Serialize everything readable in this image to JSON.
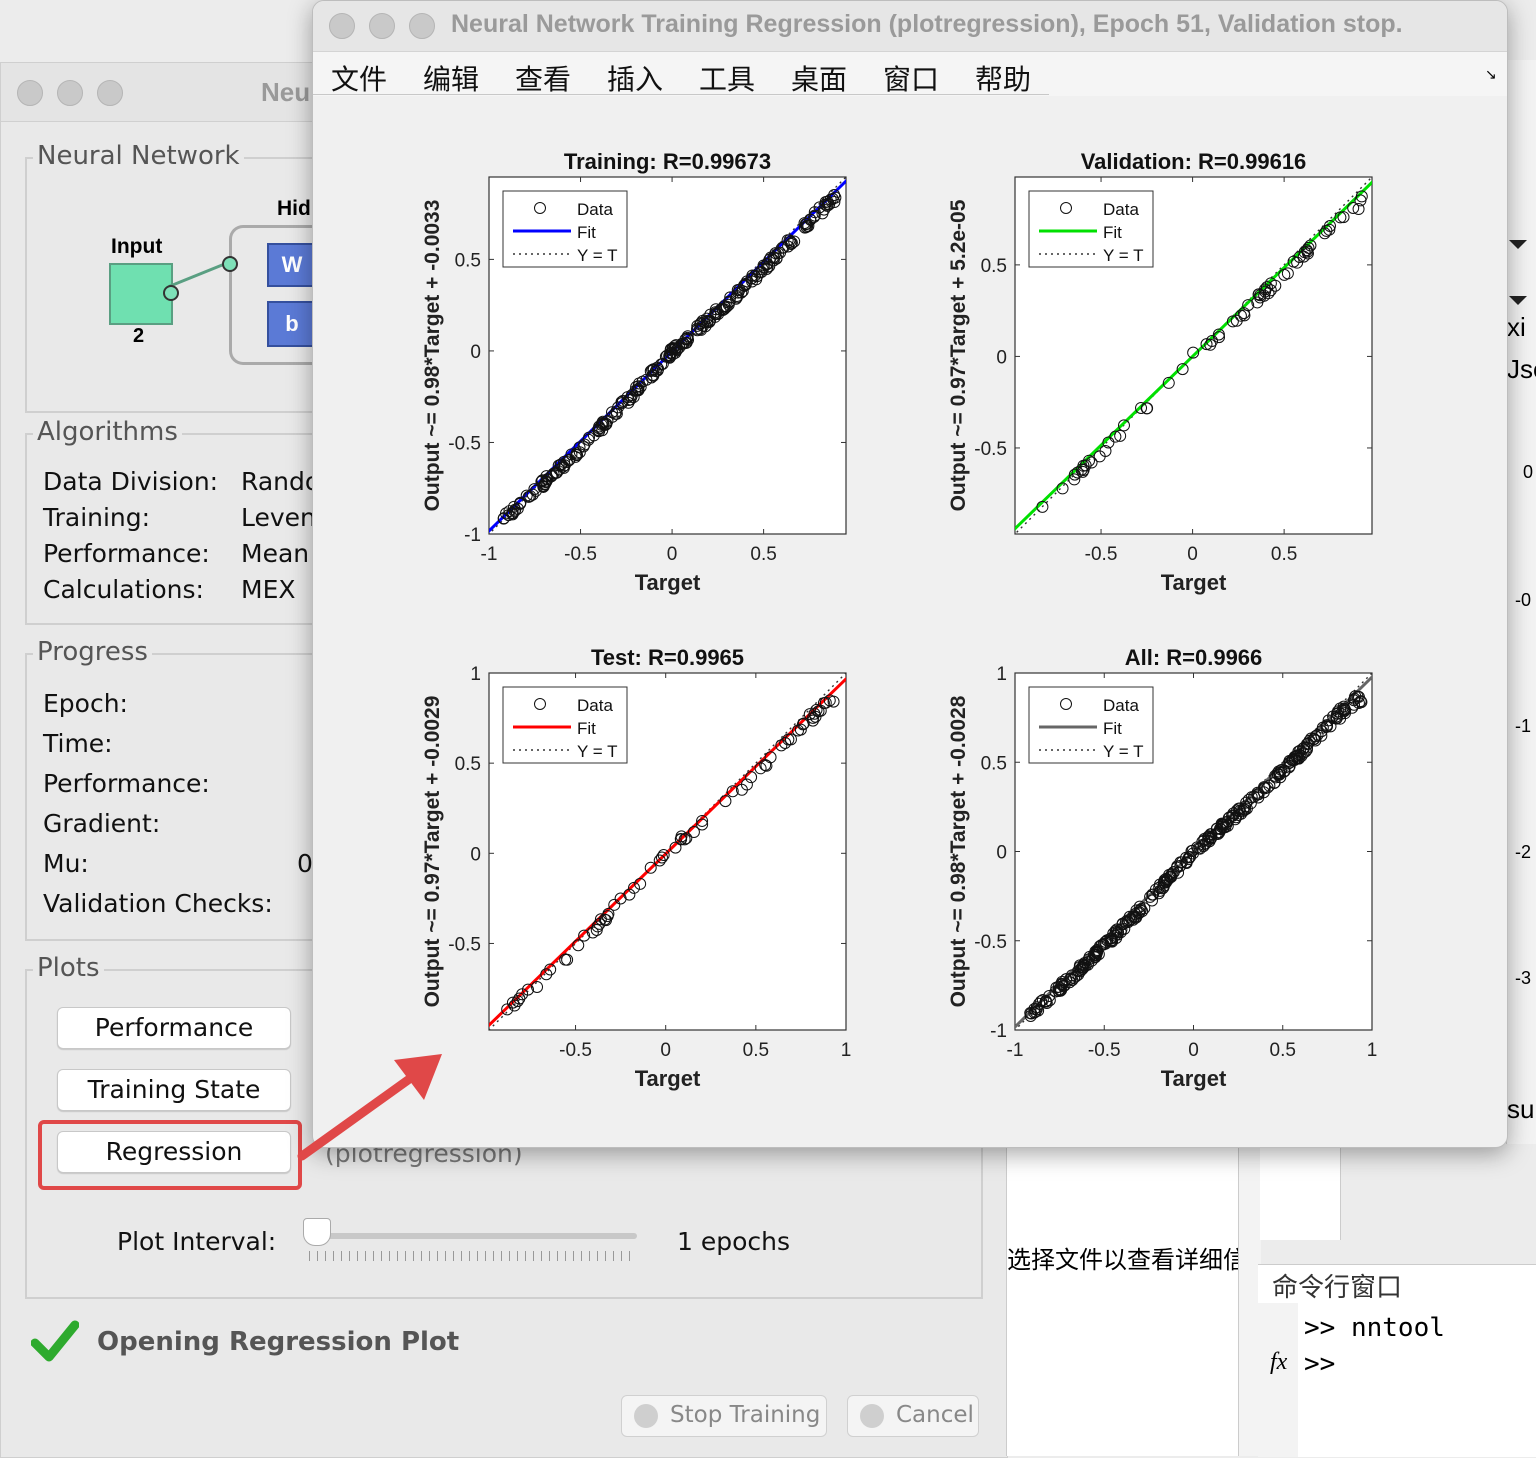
{
  "plot_window": {
    "title": "Neural Network Training Regression (plotregression), Epoch 51, Validation stop.",
    "menu": [
      "文件",
      "编辑",
      "查看",
      "插入",
      "工具",
      "桌面",
      "窗口",
      "帮助"
    ]
  },
  "bg_window": {
    "title_partial": "Neu",
    "network": {
      "group_label": "Neural Network",
      "input_label": "Input",
      "input_size": "2",
      "hidden_partial": "Hid",
      "w_label": "W",
      "b_label": "b"
    },
    "algorithms": {
      "group_label": "Algorithms",
      "rows": [
        {
          "label": "Data Division:",
          "value": "Rando"
        },
        {
          "label": "Training:",
          "value": "Leven"
        },
        {
          "label": "Performance:",
          "value": "Mean"
        },
        {
          "label": "Calculations:",
          "value": "MEX"
        }
      ]
    },
    "progress": {
      "group_label": "Progress",
      "rows": [
        "Epoch:",
        "Time:",
        "Performance:",
        "Gradient:",
        "Mu:",
        "Validation Checks:"
      ],
      "mu_partial": "0"
    },
    "plots": {
      "group_label": "Plots",
      "buttons": [
        "Performance",
        "Training State",
        "Regression"
      ],
      "regression_hint": "(plotregression)",
      "plot_interval_label": "Plot Interval:",
      "plot_interval_value": "1 epochs"
    },
    "status": "Opening Regression Plot",
    "stop_button": "Stop Training",
    "cancel_button": "Cancel"
  },
  "side": {
    "file_hint": "选择文件以查看详细信",
    "cmd_title": "命令行窗口",
    "cmd_lines": [
      ">> nntool",
      ">>"
    ],
    "fx": "fx",
    "right_fragments": [
      "xi",
      "Jse",
      "0",
      "-0",
      "-1",
      "-2",
      "-3",
      "su"
    ]
  },
  "colors": {
    "training": "#0000ff",
    "validation": "#00e000",
    "test": "#ff0000",
    "all": "#666666",
    "highlight": "#e04848"
  },
  "chart_data": [
    {
      "type": "scatter",
      "title": "Training: R=0.99673",
      "xlabel": "Target",
      "ylabel": "Output ~= 0.98*Target + -0.0033",
      "xlim": [
        -1,
        0.95
      ],
      "ylim": [
        -1,
        0.95
      ],
      "xticks": [
        "-1",
        "-0.5",
        "0",
        "0.5"
      ],
      "yticks": [
        "-1",
        "-0.5",
        "0",
        "0.5"
      ],
      "fit": {
        "slope": 0.98,
        "intercept": -0.0033,
        "color": "#0000ff"
      },
      "legend": [
        "Data",
        "Fit",
        "Y = T"
      ],
      "data_range": [
        -0.92,
        0.9
      ]
    },
    {
      "type": "scatter",
      "title": "Validation: R=0.99616",
      "xlabel": "Target",
      "ylabel": "Output ~= 0.97*Target + 5.2e-05",
      "xlim": [
        -0.97,
        0.98
      ],
      "ylim": [
        -0.97,
        0.98
      ],
      "xticks": [
        "-0.5",
        "0",
        "0.5"
      ],
      "yticks": [
        "-0.5",
        "0",
        "0.5"
      ],
      "fit": {
        "slope": 0.97,
        "intercept": 5.2e-05,
        "color": "#00e000"
      },
      "legend": [
        "Data",
        "Fit",
        "Y = T"
      ],
      "data_range": [
        -0.9,
        0.95
      ]
    },
    {
      "type": "scatter",
      "title": "Test: R=0.9965",
      "xlabel": "Target",
      "ylabel": "Output ~= 0.97*Target + -0.0029",
      "xlim": [
        -0.98,
        1
      ],
      "ylim": [
        -0.98,
        1
      ],
      "xticks": [
        "-0.5",
        "0",
        "0.5",
        "1"
      ],
      "yticks": [
        "-0.5",
        "0",
        "0.5",
        "1"
      ],
      "fit": {
        "slope": 0.97,
        "intercept": -0.0029,
        "color": "#ff0000"
      },
      "legend": [
        "Data",
        "Fit",
        "Y = T"
      ],
      "data_range": [
        -0.9,
        0.95
      ]
    },
    {
      "type": "scatter",
      "title": "All: R=0.9966",
      "xlabel": "Target",
      "ylabel": "Output ~= 0.98*Target + -0.0028",
      "xlim": [
        -1,
        1
      ],
      "ylim": [
        -1,
        1
      ],
      "xticks": [
        "-1",
        "-0.5",
        "0",
        "0.5",
        "1"
      ],
      "yticks": [
        "-1",
        "-0.5",
        "0",
        "0.5",
        "1"
      ],
      "fit": {
        "slope": 0.98,
        "intercept": -0.0028,
        "color": "#666666"
      },
      "legend": [
        "Data",
        "Fit",
        "Y = T"
      ],
      "data_range": [
        -0.92,
        0.95
      ]
    }
  ]
}
